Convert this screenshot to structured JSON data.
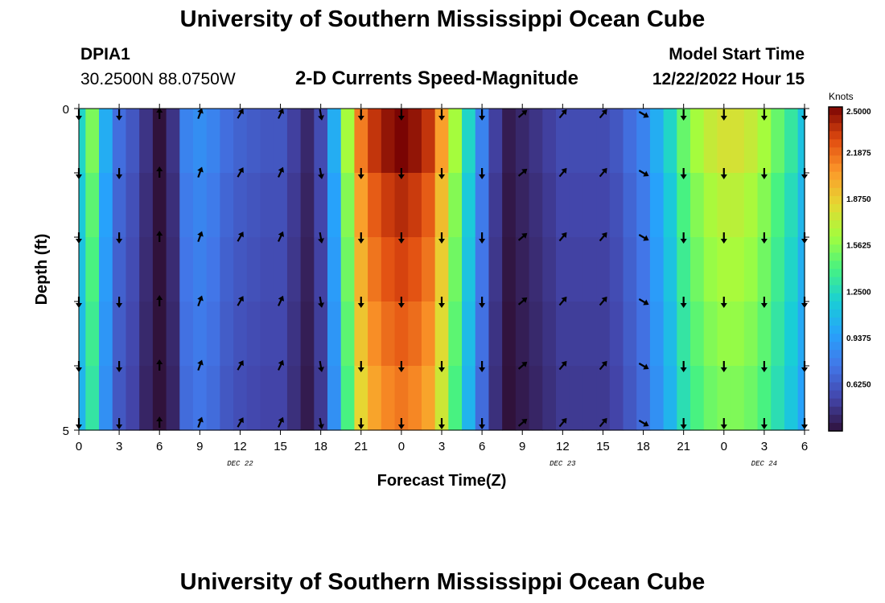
{
  "header": {
    "title": "University of Southern Mississippi Ocean Cube",
    "station_id": "DPIA1",
    "coordinates": "30.2500N  88.0750W",
    "subtitle": "2-D Currents Speed-Magnitude",
    "model_start_label": "Model Start Time",
    "model_start_value": "12/22/2022 Hour 15"
  },
  "footer": {
    "next_title": "University of Southern Mississippi Ocean Cube"
  },
  "chart_data": {
    "type": "heatmap",
    "title": "2-D Currents Speed-Magnitude",
    "xlabel": "Forecast Time(Z)",
    "ylabel": "Depth (ft)",
    "x_tick_labels": [
      "0",
      "3",
      "6",
      "9",
      "12",
      "15",
      "18",
      "21",
      "0",
      "3",
      "6",
      "9",
      "12",
      "15",
      "18",
      "21",
      "0",
      "3",
      "6"
    ],
    "x_tick_hours": [
      0,
      3,
      6,
      9,
      12,
      15,
      18,
      21,
      24,
      27,
      30,
      33,
      36,
      39,
      42,
      45,
      48,
      51,
      54
    ],
    "x_range_hours": [
      0,
      54
    ],
    "date_labels": [
      {
        "label": "DEC 22",
        "hour": 12
      },
      {
        "label": "DEC 23",
        "hour": 36
      },
      {
        "label": "DEC 24",
        "hour": 51
      }
    ],
    "y_tick_labels": [
      "0",
      "5"
    ],
    "y_range": [
      0,
      5
    ],
    "depth_layers": 5,
    "colorbar": {
      "unit": "Knots",
      "min": 0.3125,
      "max": 2.5,
      "ticks": [
        "2.5000",
        "2.1875",
        "1.8750",
        "1.5625",
        "1.2500",
        "0.9375",
        "0.6250"
      ],
      "tick_values": [
        2.5,
        2.1875,
        1.875,
        1.5625,
        1.25,
        0.9375,
        0.625
      ]
    },
    "speed_profile_knots": [
      [
        0,
        1.2
      ],
      [
        1,
        1.5
      ],
      [
        2,
        1.0
      ],
      [
        3,
        0.7
      ],
      [
        4,
        0.6
      ],
      [
        5,
        0.45
      ],
      [
        6,
        0.22
      ],
      [
        7,
        0.45
      ],
      [
        8,
        0.8
      ],
      [
        9,
        0.85
      ],
      [
        10,
        0.8
      ],
      [
        11,
        0.7
      ],
      [
        12,
        0.65
      ],
      [
        13,
        0.62
      ],
      [
        14,
        0.6
      ],
      [
        15,
        0.6
      ],
      [
        16,
        0.5
      ],
      [
        17,
        0.4
      ],
      [
        18,
        0.55
      ],
      [
        19,
        1.0
      ],
      [
        20,
        1.6
      ],
      [
        21,
        2.1
      ],
      [
        22,
        2.3
      ],
      [
        23,
        2.4
      ],
      [
        24,
        2.45
      ],
      [
        25,
        2.4
      ],
      [
        26,
        2.3
      ],
      [
        27,
        2.0
      ],
      [
        28,
        1.6
      ],
      [
        29,
        1.2
      ],
      [
        30,
        0.8
      ],
      [
        31,
        0.5
      ],
      [
        32,
        0.35
      ],
      [
        33,
        0.4
      ],
      [
        34,
        0.45
      ],
      [
        35,
        0.5
      ],
      [
        36,
        0.55
      ],
      [
        37,
        0.55
      ],
      [
        38,
        0.55
      ],
      [
        39,
        0.55
      ],
      [
        40,
        0.6
      ],
      [
        41,
        0.7
      ],
      [
        42,
        0.8
      ],
      [
        43,
        1.0
      ],
      [
        44,
        1.2
      ],
      [
        45,
        1.45
      ],
      [
        46,
        1.6
      ],
      [
        47,
        1.7
      ],
      [
        48,
        1.75
      ],
      [
        49,
        1.75
      ],
      [
        50,
        1.7
      ],
      [
        51,
        1.6
      ],
      [
        52,
        1.45
      ],
      [
        53,
        1.3
      ],
      [
        54,
        1.1
      ]
    ],
    "arrow_rows_depth": [
      0,
      1,
      2,
      3,
      4,
      5
    ],
    "arrow_direction_deg": [
      [
        0,
        180
      ],
      [
        3,
        180
      ],
      [
        6,
        0
      ],
      [
        9,
        20
      ],
      [
        12,
        30
      ],
      [
        15,
        25
      ],
      [
        18,
        170
      ],
      [
        21,
        180
      ],
      [
        24,
        180
      ],
      [
        27,
        180
      ],
      [
        30,
        180
      ],
      [
        33,
        50
      ],
      [
        36,
        40
      ],
      [
        39,
        40
      ],
      [
        42,
        120
      ],
      [
        45,
        180
      ],
      [
        48,
        180
      ],
      [
        51,
        180
      ],
      [
        54,
        180
      ]
    ]
  }
}
